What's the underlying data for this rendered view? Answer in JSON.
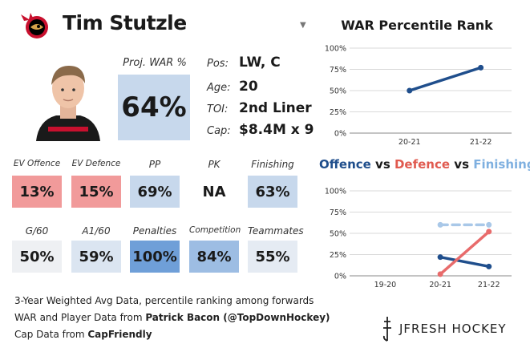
{
  "header": {
    "player_name": "Tim Stutzle",
    "dropdown_icon": "caret-down-icon"
  },
  "proj_war": {
    "label": "Proj. WAR %",
    "value": "64%",
    "color": "#c7d8ec"
  },
  "info": [
    {
      "label": "Pos:",
      "value": "LW, C"
    },
    {
      "label": "Age:",
      "value": "20"
    },
    {
      "label": "TOI:",
      "value": "2nd Liner"
    },
    {
      "label": "Cap:",
      "value": "$8.4M x 9"
    }
  ],
  "stats_row1": [
    {
      "label": "EV Offence",
      "value": "13%",
      "color": "#f19a9a"
    },
    {
      "label": "EV Defence",
      "value": "15%",
      "color": "#f19a9a"
    },
    {
      "label": "PP",
      "value": "69%",
      "color": "#c7d8ec"
    },
    {
      "label": "PK",
      "value": "NA",
      "color": "#ffffff"
    },
    {
      "label": "Finishing",
      "value": "63%",
      "color": "#c7d8ec"
    }
  ],
  "stats_row2": [
    {
      "label": "G/60",
      "value": "50%",
      "color": "#eef0f3"
    },
    {
      "label": "A1/60",
      "value": "59%",
      "color": "#dbe5f1"
    },
    {
      "label": "Penalties",
      "value": "100%",
      "color": "#6f9fd8"
    },
    {
      "label": "Competition",
      "value": "84%",
      "color": "#9dbde3"
    },
    {
      "label": "Teammates",
      "value": "55%",
      "color": "#e5ebf3"
    }
  ],
  "footer": {
    "line1": "3-Year Weighted Avg Data, percentile ranking among forwards",
    "line2_prefix": "WAR and Player Data from ",
    "line2_bold": "Patrick Bacon (@TopDownHockey)",
    "line3_prefix": "Cap Data from ",
    "line3_bold": "CapFriendly",
    "brand": "JFRESH HOCKEY"
  },
  "chart_data": [
    {
      "type": "line",
      "title": "WAR Percentile Rank",
      "categories": [
        "20-21",
        "21-22"
      ],
      "series": [
        {
          "values": [
            50,
            77
          ],
          "color": "#1f4e8c"
        }
      ],
      "ylim": [
        0,
        100
      ],
      "yticks": [
        "0%",
        "25%",
        "50%",
        "75%",
        "100%"
      ],
      "grid": true
    },
    {
      "type": "line",
      "title_parts": [
        {
          "text": "Offence",
          "color": "#1f4e8c"
        },
        {
          "text": " vs ",
          "color": "#1a1a1a"
        },
        {
          "text": "Defence",
          "color": "#e05a4f"
        },
        {
          "text": " vs ",
          "color": "#1a1a1a"
        },
        {
          "text": "Finishing",
          "color": "#7fb0e0"
        }
      ],
      "categories": [
        "19-20",
        "20-21",
        "21-22"
      ],
      "series": [
        {
          "name": "Offence",
          "values": [
            null,
            22,
            11
          ],
          "color": "#1f4e8c",
          "dashed": false
        },
        {
          "name": "Defence",
          "values": [
            null,
            2,
            52
          ],
          "color": "#e86b6b",
          "dashed": false
        },
        {
          "name": "Finishing",
          "values": [
            null,
            60,
            60
          ],
          "color": "#a9c8e8",
          "dashed": true
        }
      ],
      "ylim": [
        0,
        100
      ],
      "yticks": [
        "0%",
        "25%",
        "50%",
        "75%",
        "100%"
      ],
      "grid": true
    }
  ]
}
